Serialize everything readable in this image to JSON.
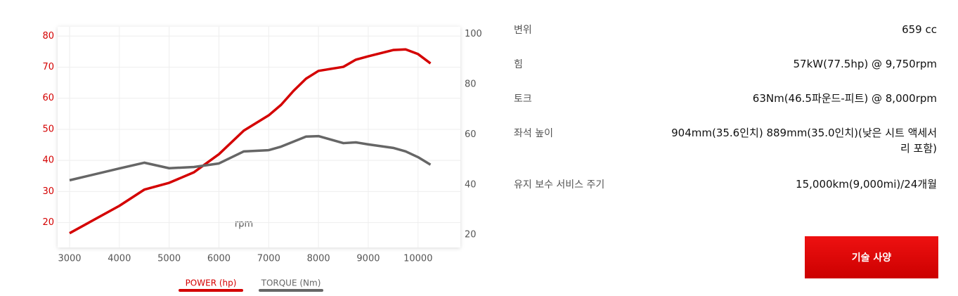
{
  "chart_data": {
    "type": "line",
    "x_label": "rpm",
    "x": [
      3000,
      4000,
      4500,
      5000,
      5500,
      6000,
      6500,
      7000,
      7250,
      7500,
      7750,
      8000,
      8500,
      8750,
      9000,
      9500,
      9750,
      10000,
      10250
    ],
    "series": [
      {
        "name": "POWER (hp)",
        "color": "#d40000",
        "values": [
          16.6,
          25.4,
          30.6,
          32.8,
          36.2,
          42,
          49.6,
          54.5,
          57.9,
          62.4,
          66.3,
          68.8,
          70.1,
          72.4,
          73.5,
          75.5,
          75.7,
          74.2,
          71.2
        ]
      },
      {
        "name": "TORQUE (Nm)",
        "color": "#666666",
        "axis": "y2",
        "values": [
          41.8,
          46.5,
          48.8,
          46.6,
          47.1,
          48.5,
          53.3,
          53.8,
          55.2,
          57.2,
          59.2,
          59.4,
          56.6,
          56.9,
          56.1,
          54.7,
          53.3,
          51,
          48
        ]
      }
    ],
    "xlim": [
      2760,
      10850
    ],
    "xticks": [
      3000,
      4000,
      5000,
      6000,
      7000,
      8000,
      9000,
      10000
    ],
    "ylim": [
      12,
      83
    ],
    "yticks": [
      20,
      30,
      40,
      50,
      60,
      70,
      80
    ],
    "y2lim": [
      15,
      103
    ],
    "y2ticks": [
      20,
      40,
      60,
      80,
      100
    ],
    "grid": true
  },
  "specs": [
    {
      "label": "변위",
      "value": "659 cc"
    },
    {
      "label": "힘",
      "value": "57kW(77.5hp) @ 9,750rpm"
    },
    {
      "label": "토크",
      "value": "63Nm(46.5파운드-피트) @ 8,000rpm"
    },
    {
      "label": "좌석 높이",
      "value": "904mm(35.6인치) 889mm(35.0인치)(낮은 시트 액세서리 포함)"
    },
    {
      "label": "유지 보수 서비스 주기",
      "value": "15,000km(9,000mi)/24개월"
    }
  ],
  "button": "기술 사양"
}
